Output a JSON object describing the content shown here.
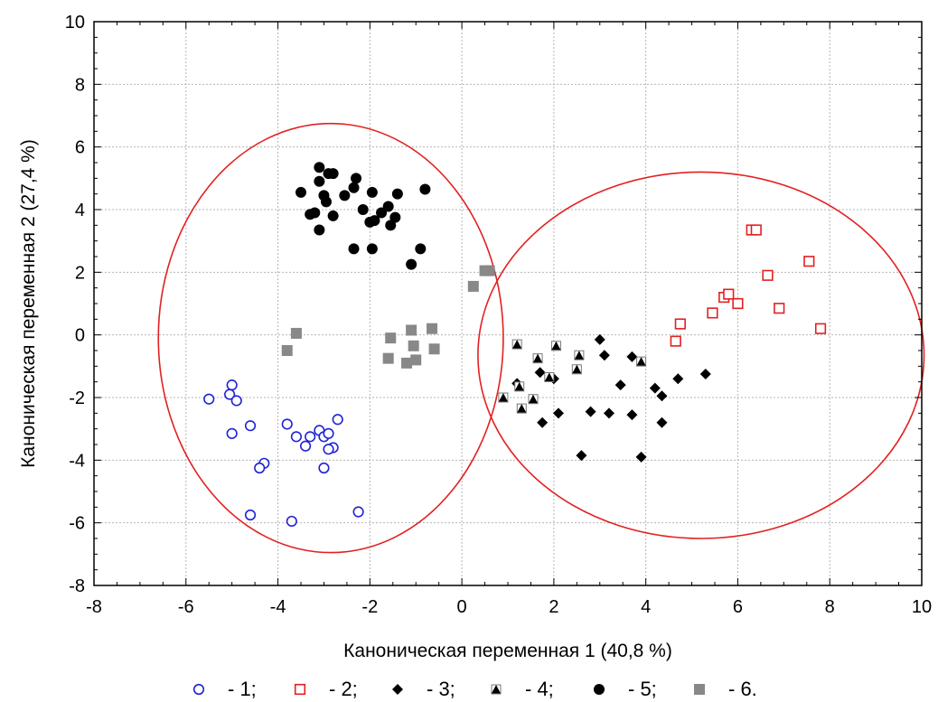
{
  "chart_data": {
    "type": "scatter",
    "title": "",
    "xlabel": "Каноническая переменная 1  (40,8 %)",
    "ylabel": "Каноническая переменная 2  (27,4 %)",
    "xlim": [
      -8,
      10
    ],
    "ylim": [
      -8,
      10
    ],
    "x_ticks": [
      "-8",
      "-6",
      "-4",
      "-2",
      "0",
      "2",
      "4",
      "6",
      "8",
      "10"
    ],
    "y_ticks": [
      "-8",
      "-6",
      "-4",
      "-2",
      "0",
      "2",
      "4",
      "6",
      "8",
      "10"
    ],
    "grid": true,
    "legend_position": "bottom",
    "series": [
      {
        "name": "- 1;",
        "marker": "open-circle",
        "color": "#1f24d6",
        "points": [
          [
            -5.5,
            -2.05
          ],
          [
            -5.05,
            -1.9
          ],
          [
            -5.0,
            -1.6
          ],
          [
            -4.9,
            -2.1
          ],
          [
            -5.0,
            -3.15
          ],
          [
            -4.6,
            -2.9
          ],
          [
            -4.3,
            -4.1
          ],
          [
            -4.4,
            -4.25
          ],
          [
            -4.6,
            -5.75
          ],
          [
            -3.8,
            -2.85
          ],
          [
            -3.6,
            -3.25
          ],
          [
            -3.3,
            -3.25
          ],
          [
            -3.1,
            -3.05
          ],
          [
            -3.4,
            -3.55
          ],
          [
            -3.0,
            -3.25
          ],
          [
            -2.9,
            -3.15
          ],
          [
            -2.8,
            -3.6
          ],
          [
            -2.9,
            -3.65
          ],
          [
            -2.7,
            -2.7
          ],
          [
            -3.0,
            -4.25
          ],
          [
            -3.7,
            -5.95
          ],
          [
            -2.25,
            -5.65
          ]
        ]
      },
      {
        "name": "- 2;",
        "marker": "open-square",
        "color": "#e32020",
        "points": [
          [
            4.65,
            -0.2
          ],
          [
            4.75,
            0.35
          ],
          [
            5.45,
            0.7
          ],
          [
            5.7,
            1.2
          ],
          [
            5.8,
            1.3
          ],
          [
            6.0,
            1.0
          ],
          [
            6.3,
            3.35
          ],
          [
            6.4,
            3.35
          ],
          [
            6.65,
            1.9
          ],
          [
            6.9,
            0.85
          ],
          [
            7.55,
            2.35
          ],
          [
            7.8,
            0.2
          ]
        ]
      },
      {
        "name": "- 3;",
        "marker": "diamond",
        "color": "#000000",
        "points": [
          [
            1.2,
            -1.55
          ],
          [
            1.7,
            -1.2
          ],
          [
            1.75,
            -2.8
          ],
          [
            2.0,
            -1.4
          ],
          [
            2.1,
            -2.5
          ],
          [
            2.6,
            -3.85
          ],
          [
            2.8,
            -2.45
          ],
          [
            3.0,
            -0.15
          ],
          [
            3.1,
            -0.65
          ],
          [
            3.2,
            -2.5
          ],
          [
            3.45,
            -1.6
          ],
          [
            3.7,
            -0.7
          ],
          [
            3.7,
            -2.55
          ],
          [
            3.9,
            -3.9
          ],
          [
            4.2,
            -1.7
          ],
          [
            4.35,
            -1.95
          ],
          [
            4.35,
            -2.8
          ],
          [
            4.7,
            -1.4
          ],
          [
            5.3,
            -1.25
          ]
        ]
      },
      {
        "name": "- 4;",
        "marker": "triangle-in-square",
        "color": "#000000",
        "points": [
          [
            0.9,
            -2.0
          ],
          [
            1.2,
            -0.3
          ],
          [
            1.25,
            -1.65
          ],
          [
            1.3,
            -2.35
          ],
          [
            1.55,
            -2.05
          ],
          [
            1.65,
            -0.75
          ],
          [
            1.9,
            -1.35
          ],
          [
            2.05,
            -0.35
          ],
          [
            2.5,
            -1.1
          ],
          [
            2.55,
            -0.65
          ],
          [
            3.9,
            -0.85
          ]
        ]
      },
      {
        "name": "- 5;",
        "marker": "filled-circle",
        "color": "#000000",
        "points": [
          [
            -3.5,
            4.55
          ],
          [
            -3.3,
            3.85
          ],
          [
            -3.2,
            3.9
          ],
          [
            -3.1,
            5.35
          ],
          [
            -3.1,
            4.9
          ],
          [
            -3.0,
            4.45
          ],
          [
            -2.95,
            4.25
          ],
          [
            -2.9,
            5.15
          ],
          [
            -2.8,
            5.15
          ],
          [
            -3.1,
            3.35
          ],
          [
            -2.8,
            3.8
          ],
          [
            -2.55,
            4.45
          ],
          [
            -2.35,
            4.7
          ],
          [
            -2.3,
            5.0
          ],
          [
            -2.15,
            4.0
          ],
          [
            -2.35,
            2.75
          ],
          [
            -1.95,
            4.55
          ],
          [
            -2.0,
            3.6
          ],
          [
            -1.9,
            3.65
          ],
          [
            -1.95,
            2.75
          ],
          [
            -1.75,
            3.9
          ],
          [
            -1.6,
            4.1
          ],
          [
            -1.55,
            3.5
          ],
          [
            -1.45,
            3.75
          ],
          [
            -1.4,
            4.5
          ],
          [
            -1.1,
            2.25
          ],
          [
            -0.9,
            2.75
          ],
          [
            -0.8,
            4.65
          ]
        ]
      },
      {
        "name": "- 6.",
        "marker": "filled-square",
        "color": "#888888",
        "points": [
          [
            -3.8,
            -0.5
          ],
          [
            -3.6,
            0.05
          ],
          [
            -1.6,
            -0.75
          ],
          [
            -1.55,
            -0.1
          ],
          [
            -1.2,
            -0.9
          ],
          [
            -1.1,
            0.15
          ],
          [
            -1.05,
            -0.35
          ],
          [
            -1.0,
            -0.8
          ],
          [
            -0.65,
            0.2
          ],
          [
            -0.6,
            -0.45
          ],
          [
            0.25,
            1.55
          ],
          [
            0.5,
            2.05
          ],
          [
            0.6,
            2.05
          ]
        ]
      }
    ],
    "ellipses": [
      {
        "cx": -2.85,
        "cy": -0.1,
        "rx": 3.75,
        "ry": 6.85,
        "color": "#e32020"
      },
      {
        "cx": 5.2,
        "cy": -0.65,
        "rx": 4.85,
        "ry": 5.85,
        "color": "#e32020"
      }
    ]
  }
}
